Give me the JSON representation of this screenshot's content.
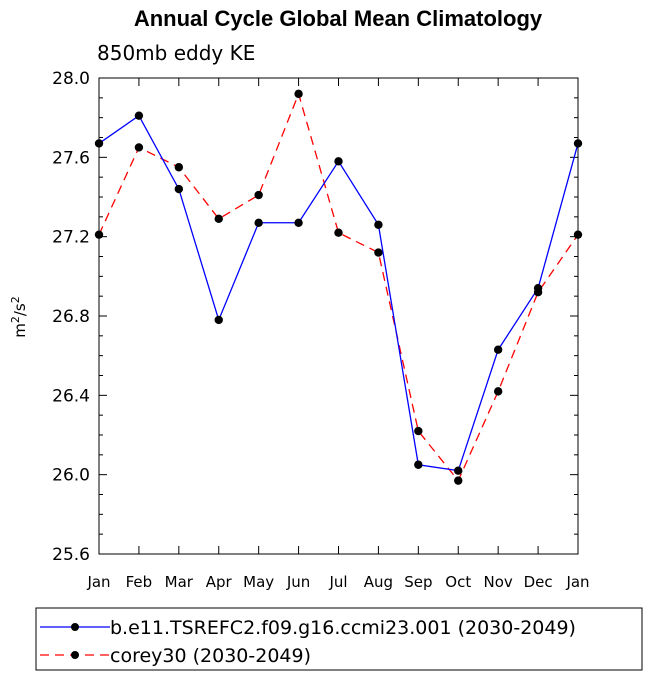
{
  "chart_data": {
    "type": "line",
    "title": "Annual Cycle Global Mean Climatology",
    "subtitle": "850mb eddy KE",
    "xlabel": "",
    "ylabel_base": "m",
    "ylabel_sup1": "2",
    "ylabel_mid": "/s",
    "ylabel_sup2": "2",
    "categories": [
      "Jan",
      "Feb",
      "Mar",
      "Apr",
      "May",
      "Jun",
      "Jul",
      "Aug",
      "Sep",
      "Oct",
      "Nov",
      "Dec",
      "Jan"
    ],
    "ylim": [
      25.6,
      28.0
    ],
    "yticks": [
      "25.6",
      "26.0",
      "26.4",
      "26.8",
      "27.2",
      "27.6",
      "28.0"
    ],
    "grid": false,
    "legend_position": "bottom",
    "series": [
      {
        "name": "b.e11.TSREFC2.f09.g16.ccmi23.001 (2030-2049)",
        "color": "#0000ff",
        "dash": "solid",
        "values": [
          27.67,
          27.81,
          27.44,
          26.78,
          27.27,
          27.27,
          27.58,
          27.26,
          26.05,
          26.02,
          26.63,
          26.94,
          27.67
        ]
      },
      {
        "name": "corey30 (2030-2049)",
        "color": "#ff0000",
        "dash": "dashed",
        "values": [
          27.21,
          27.65,
          27.55,
          27.29,
          27.41,
          27.92,
          27.22,
          27.12,
          26.22,
          25.97,
          26.42,
          26.92,
          27.21
        ]
      }
    ]
  }
}
